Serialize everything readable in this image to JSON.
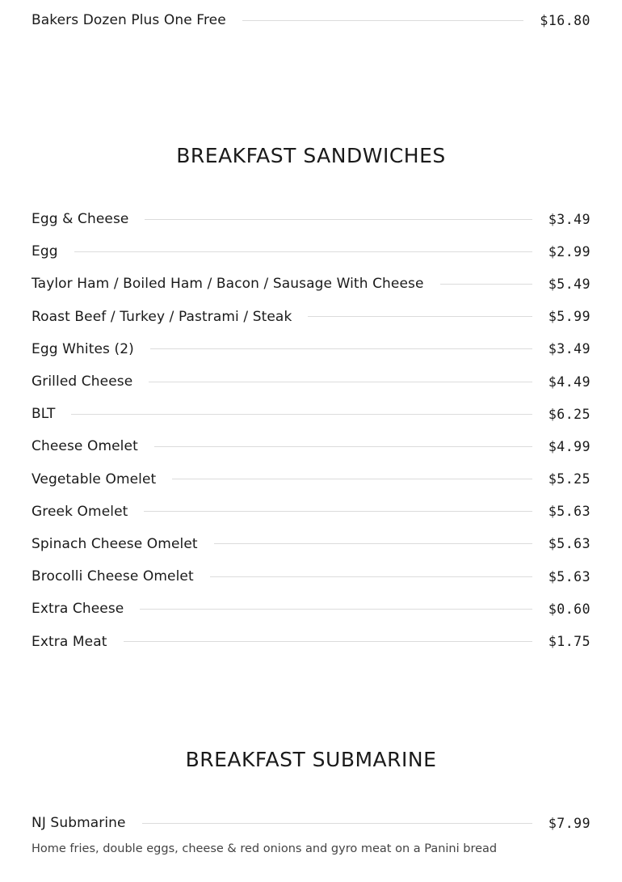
{
  "top_items": [
    {
      "name": "Bakers Dozen Plus One Free",
      "price": "$16.80"
    }
  ],
  "sections": [
    {
      "title": "BREAKFAST SANDWICHES",
      "items": [
        {
          "name": "Egg & Cheese",
          "price": "$3.49"
        },
        {
          "name": "Egg",
          "price": "$2.99"
        },
        {
          "name": "Taylor Ham / Boiled Ham / Bacon / Sausage With Cheese",
          "price": "$5.49"
        },
        {
          "name": "Roast Beef / Turkey / Pastrami / Steak",
          "price": "$5.99"
        },
        {
          "name": "Egg Whites (2)",
          "price": "$3.49"
        },
        {
          "name": "Grilled Cheese",
          "price": "$4.49"
        },
        {
          "name": "BLT",
          "price": "$6.25"
        },
        {
          "name": "Cheese Omelet",
          "price": "$4.99"
        },
        {
          "name": "Vegetable Omelet",
          "price": "$5.25"
        },
        {
          "name": "Greek Omelet",
          "price": "$5.63"
        },
        {
          "name": "Spinach Cheese Omelet",
          "price": "$5.63"
        },
        {
          "name": "Brocolli Cheese Omelet",
          "price": "$5.63"
        },
        {
          "name": "Extra Cheese",
          "price": "$0.60"
        },
        {
          "name": "Extra Meat",
          "price": "$1.75"
        }
      ]
    },
    {
      "title": "BREAKFAST SUBMARINE",
      "items": [
        {
          "name": "NJ Submarine",
          "price": "$7.99",
          "description": "Home fries, double eggs, cheese & red onions and gyro meat on a Panini bread"
        }
      ]
    }
  ]
}
